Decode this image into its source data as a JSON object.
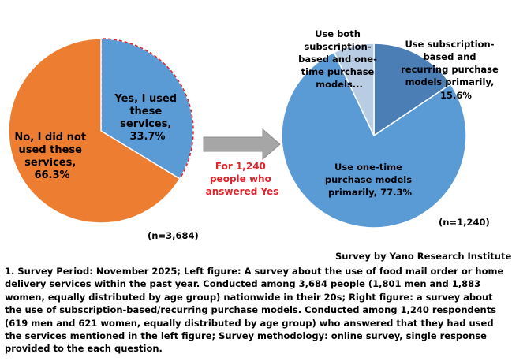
{
  "chart_data": [
    {
      "type": "pie",
      "slices": [
        {
          "label": "Yes, I used these services, 33.7%",
          "value": 33.7,
          "color": "#5b9bd5"
        },
        {
          "label": "No, I did not used these services, 66.3%",
          "value": 66.3,
          "color": "#ed7d31"
        }
      ],
      "n_label": "(n=3,684)"
    },
    {
      "type": "pie",
      "slices": [
        {
          "label": "Use subscription-based and recurring purchase models primarily, 15.6%",
          "value": 15.6,
          "color": "#4a7eb5"
        },
        {
          "label": "Use one-time purchase models primarily, 77.3%",
          "value": 77.3,
          "color": "#5b9bd5"
        },
        {
          "label": "Use both subscription-based and one-time purchase models...",
          "value": 7.1,
          "color": "#b8cce4"
        }
      ],
      "n_label": "(n=1,240)"
    }
  ],
  "arrow_caption": "For 1,240 people who answered Yes",
  "caption_color": "#e0242b",
  "source": "Survey by Yano Research Institute",
  "footnote": "1. Survey Period: November 2025; Left figure: A survey about the use of food mail order or home delivery services within the past year. Conducted among 3,684 people (1,801 men and 1,883 women, equally distributed by age group) nationwide in their 20s; Right figure: a survey about the use of subscription-based/recurring purchase models. Conducted among 1,240 respondents (619 men and 621 women, equally distributed by age group) who answered that they had used the services mentioned in the left figure; Survey methodology: online survey, single response provided to the each question."
}
